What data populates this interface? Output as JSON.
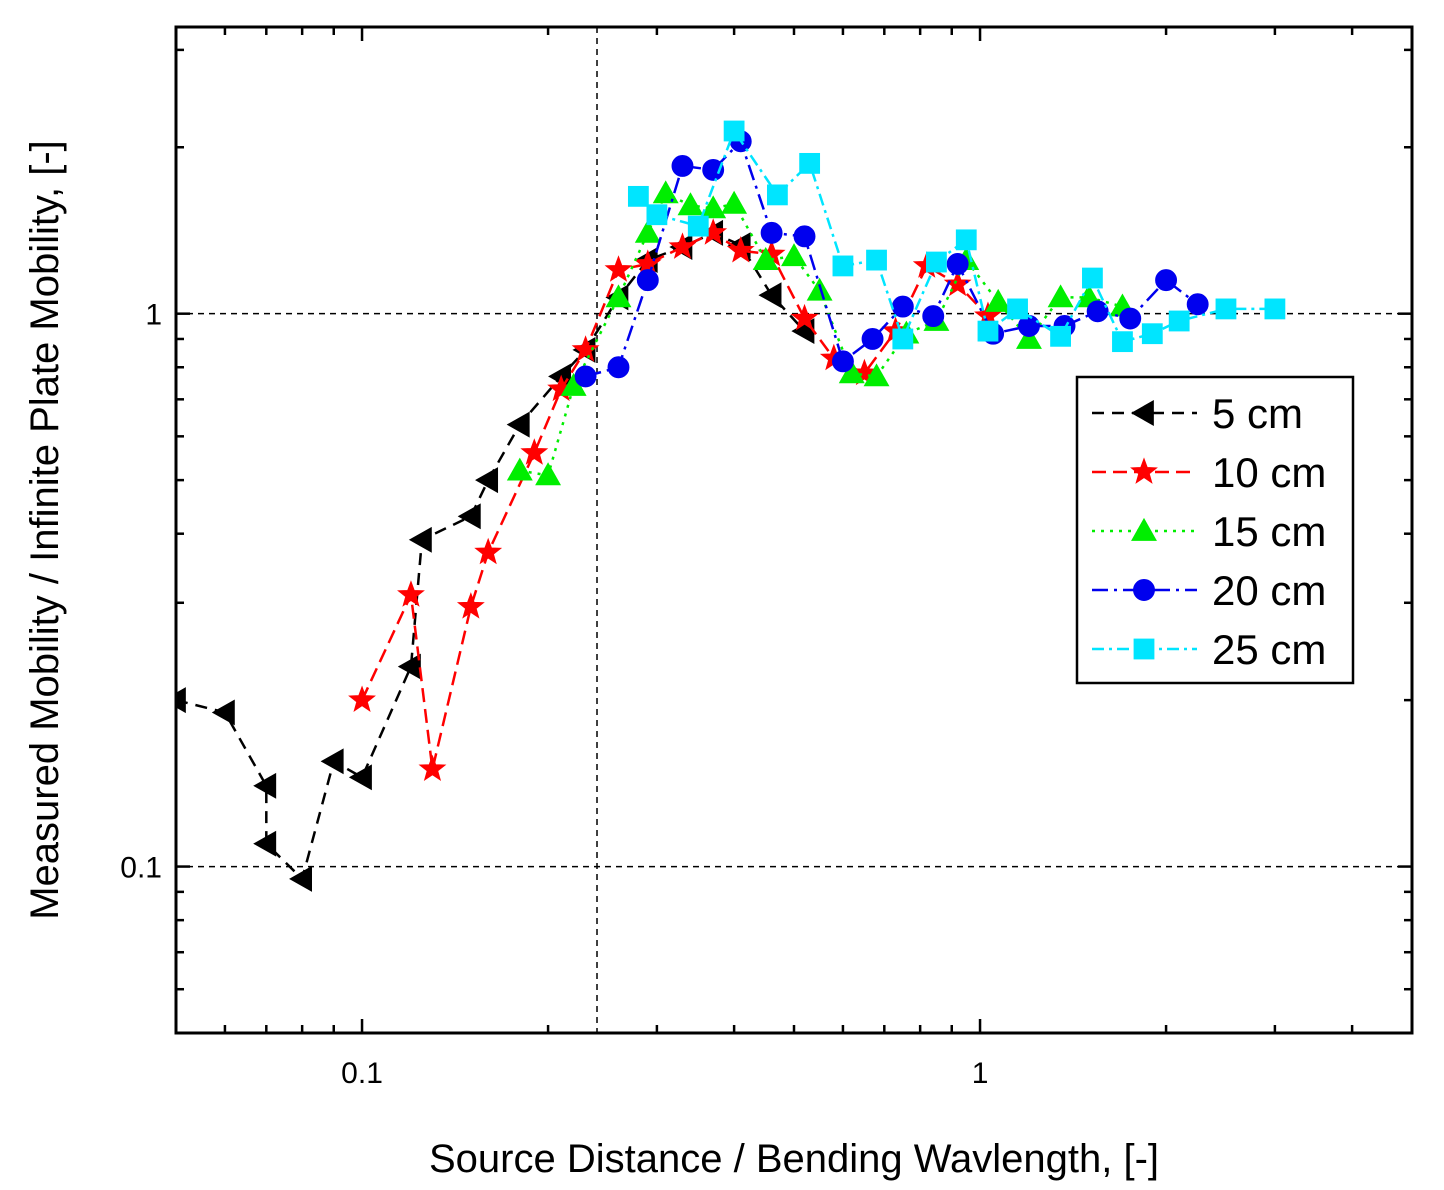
{
  "chart_data": {
    "type": "line",
    "xscale": "log",
    "yscale": "log",
    "xlim": [
      0.05,
      5
    ],
    "ylim": [
      0.05,
      3.3
    ],
    "xlabel": "Source Distance / Bending Wavlength, [-]",
    "ylabel": "Measured Mobility / Infinite Plate Mobility, [-]",
    "x_ticks": [
      {
        "value": 0.1,
        "label": "0.1"
      },
      {
        "value": 1,
        "label": "1"
      }
    ],
    "y_ticks": [
      {
        "value": 0.1,
        "label": "0.1"
      },
      {
        "value": 1,
        "label": "1"
      }
    ],
    "reference_lines": {
      "vertical_x": 0.24,
      "horizontal_y": [
        0.1,
        1
      ]
    },
    "legend_position": "right-center",
    "series": [
      {
        "name": "5 cm",
        "label": "5 cm",
        "color": "#000000",
        "marker": "triangle-left",
        "dash": "12,8",
        "x": [
          0.05,
          0.06,
          0.07,
          0.07,
          0.08,
          0.09,
          0.1,
          0.12,
          0.125,
          0.15,
          0.16,
          0.18,
          0.21,
          0.23,
          0.26,
          0.29,
          0.33,
          0.37,
          0.41,
          0.46,
          0.52
        ],
        "y": [
          0.2,
          0.19,
          0.14,
          0.11,
          0.095,
          0.155,
          0.145,
          0.23,
          0.39,
          0.43,
          0.5,
          0.63,
          0.77,
          0.86,
          1.07,
          1.25,
          1.32,
          1.4,
          1.33,
          1.08,
          0.93
        ]
      },
      {
        "name": "10 cm",
        "label": "10 cm",
        "color": "#ff0000",
        "marker": "star",
        "dash": "14,7",
        "x": [
          0.1,
          0.12,
          0.13,
          0.15,
          0.16,
          0.19,
          0.21,
          0.23,
          0.26,
          0.29,
          0.33,
          0.37,
          0.41,
          0.46,
          0.52,
          0.58,
          0.65,
          0.73,
          0.82,
          0.92,
          1.03
        ],
        "y": [
          0.2,
          0.31,
          0.15,
          0.295,
          0.37,
          0.56,
          0.73,
          0.86,
          1.2,
          1.23,
          1.32,
          1.4,
          1.3,
          1.28,
          0.98,
          0.83,
          0.78,
          0.93,
          1.22,
          1.13,
          0.99
        ]
      },
      {
        "name": "15 cm",
        "label": "15 cm",
        "color": "#00ee00",
        "marker": "triangle-up",
        "dash": "3,6",
        "x": [
          0.18,
          0.2,
          0.22,
          0.26,
          0.29,
          0.31,
          0.34,
          0.37,
          0.4,
          0.45,
          0.5,
          0.55,
          0.62,
          0.68,
          0.76,
          0.85,
          0.95,
          1.07,
          1.2,
          1.35,
          1.5,
          1.7
        ],
        "y": [
          0.52,
          0.51,
          0.74,
          1.07,
          1.4,
          1.65,
          1.57,
          1.55,
          1.58,
          1.25,
          1.27,
          1.1,
          0.78,
          0.77,
          0.92,
          0.97,
          1.25,
          1.05,
          0.9,
          1.07,
          1.07,
          1.03
        ]
      },
      {
        "name": "20 cm",
        "label": "20 cm",
        "color": "#0000ee",
        "marker": "circle",
        "dash": "16,6,3,6",
        "x": [
          0.23,
          0.26,
          0.29,
          0.33,
          0.37,
          0.41,
          0.46,
          0.52,
          0.6,
          0.67,
          0.75,
          0.84,
          0.92,
          1.05,
          1.2,
          1.37,
          1.55,
          1.75,
          2.0,
          2.25
        ],
        "y": [
          0.77,
          0.8,
          1.15,
          1.85,
          1.82,
          2.05,
          1.4,
          1.38,
          0.82,
          0.9,
          1.03,
          0.99,
          1.23,
          0.92,
          0.95,
          0.95,
          1.01,
          0.98,
          1.15,
          1.04
        ]
      },
      {
        "name": "25 cm",
        "label": "25 cm",
        "color": "#00e5ff",
        "marker": "square",
        "dash": "12,5,3,5",
        "x": [
          0.28,
          0.3,
          0.35,
          0.4,
          0.47,
          0.53,
          0.6,
          0.68,
          0.75,
          0.85,
          0.95,
          1.03,
          1.15,
          1.35,
          1.52,
          1.7,
          1.9,
          2.1,
          2.5,
          3.0
        ],
        "y": [
          1.63,
          1.51,
          1.44,
          2.14,
          1.64,
          1.87,
          1.22,
          1.25,
          0.9,
          1.24,
          1.36,
          0.93,
          1.02,
          0.91,
          1.16,
          0.89,
          0.92,
          0.97,
          1.02,
          1.02
        ]
      }
    ]
  }
}
